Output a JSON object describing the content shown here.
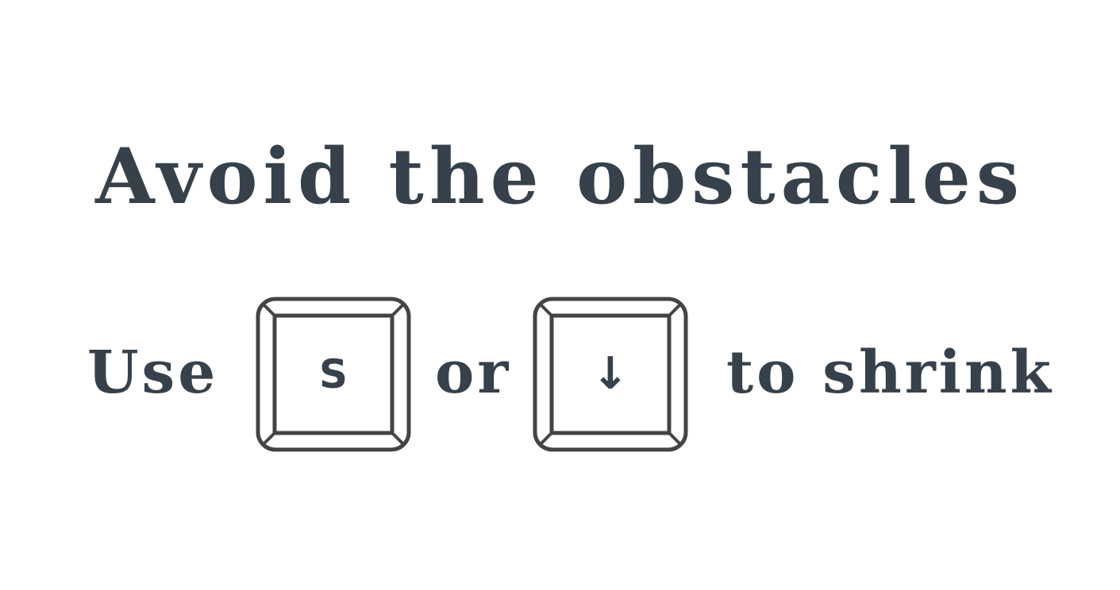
{
  "screen": {
    "title": "Avoid the obstacles",
    "instruction": {
      "prefix": "Use",
      "connector": "or",
      "suffix": "to shrink",
      "keys": [
        {
          "label": "S",
          "icon": "s-key"
        },
        {
          "label": "↓",
          "icon": "down-arrow-icon"
        }
      ]
    }
  },
  "colors": {
    "background": "#ffffff",
    "text": "#37414b",
    "key_outline": "#444444"
  }
}
